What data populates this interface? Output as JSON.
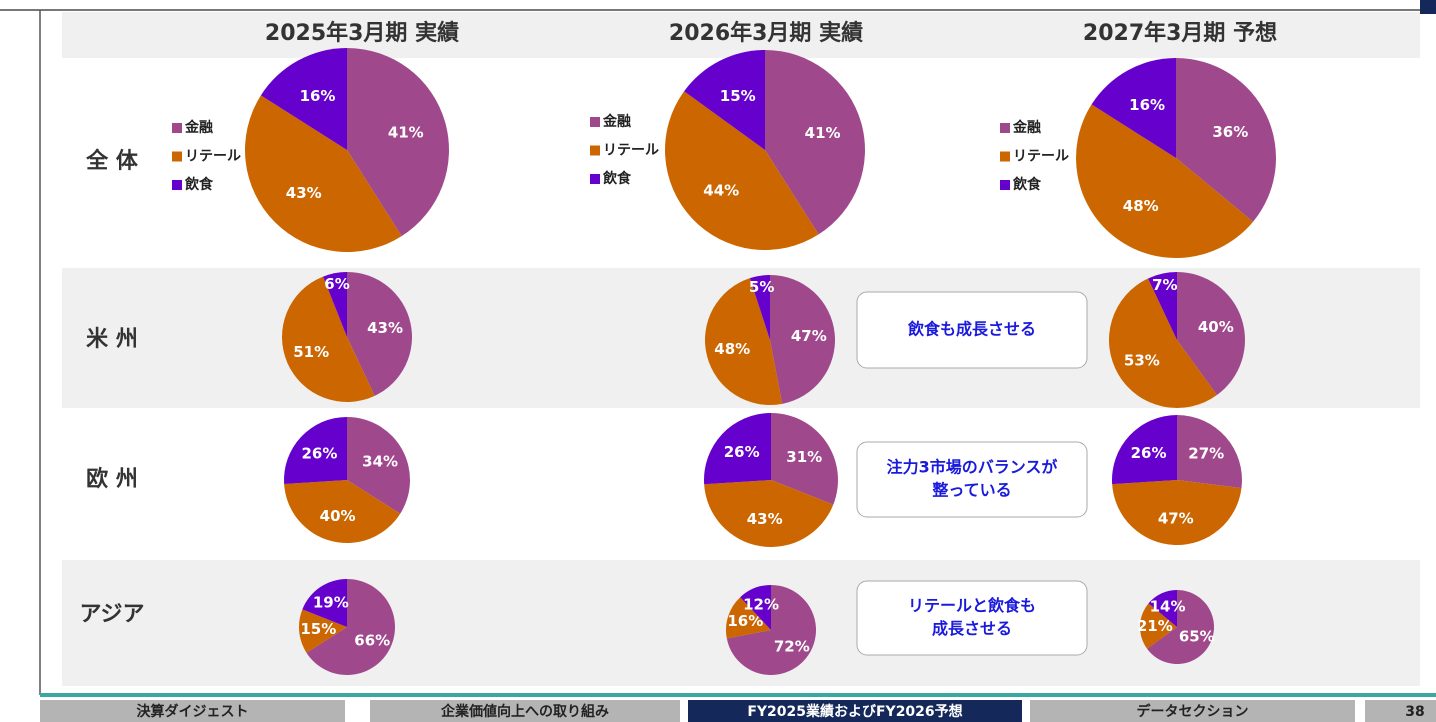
{
  "headers": [
    "2025年3月期 実績",
    "2026年3月期 実績",
    "2027年3月期 予想"
  ],
  "rows": [
    "全 体",
    "米 州",
    "欧 州",
    "アジア"
  ],
  "callouts": [
    [
      "飲食も成長させる"
    ],
    [
      "注力3市場のバランスが",
      "整っている"
    ],
    [
      "リテールと飲食も",
      "成長させる"
    ]
  ],
  "nav": {
    "tabs": [
      "決算ダイジェスト",
      "企業価値向上への取り組み",
      "FY2025業績およびFY2026予想",
      "データセクション"
    ],
    "active": 2,
    "page": "38"
  },
  "chart_data": [
    {
      "type": "pie",
      "categories": [
        "金融",
        "リテール",
        "飲食"
      ],
      "values": [
        41,
        43,
        16
      ],
      "value_labels": [
        "41%",
        "43%",
        "16%"
      ],
      "colors": [
        "#a0488c",
        "#cc6600",
        "#6600cc"
      ]
    },
    {
      "type": "pie",
      "categories": [
        "金融",
        "リテール",
        "飲食"
      ],
      "values": [
        41,
        44,
        15
      ],
      "value_labels": [
        "41%",
        "44%",
        "15%"
      ],
      "colors": [
        "#a0488c",
        "#cc6600",
        "#6600cc"
      ]
    },
    {
      "type": "pie",
      "categories": [
        "金融",
        "リテール",
        "飲食"
      ],
      "values": [
        36,
        48,
        16
      ],
      "value_labels": [
        "36%",
        "48%",
        "16%"
      ],
      "colors": [
        "#a0488c",
        "#cc6600",
        "#6600cc"
      ]
    },
    {
      "type": "pie",
      "values": [
        43,
        51,
        6
      ],
      "value_labels": [
        "43%",
        "51%",
        "6%"
      ],
      "colors": [
        "#a0488c",
        "#cc6600",
        "#6600cc"
      ]
    },
    {
      "type": "pie",
      "values": [
        47,
        48,
        5
      ],
      "value_labels": [
        "47%",
        "48%",
        "5%"
      ],
      "colors": [
        "#a0488c",
        "#cc6600",
        "#6600cc"
      ]
    },
    {
      "type": "pie",
      "values": [
        40,
        53,
        7
      ],
      "value_labels": [
        "40%",
        "53%",
        "7%"
      ],
      "colors": [
        "#a0488c",
        "#cc6600",
        "#6600cc"
      ]
    },
    {
      "type": "pie",
      "values": [
        34,
        40,
        26
      ],
      "value_labels": [
        "34%",
        "40%",
        "26%"
      ],
      "colors": [
        "#a0488c",
        "#cc6600",
        "#6600cc"
      ]
    },
    {
      "type": "pie",
      "values": [
        31,
        43,
        26
      ],
      "value_labels": [
        "31%",
        "43%",
        "26%"
      ],
      "colors": [
        "#a0488c",
        "#cc6600",
        "#6600cc"
      ]
    },
    {
      "type": "pie",
      "values": [
        27,
        47,
        26
      ],
      "value_labels": [
        "27%",
        "47%",
        "26%"
      ],
      "colors": [
        "#a0488c",
        "#cc6600",
        "#6600cc"
      ]
    },
    {
      "type": "pie",
      "values": [
        66,
        15,
        19
      ],
      "value_labels": [
        "66%",
        "15%",
        "19%"
      ],
      "colors": [
        "#a0488c",
        "#cc6600",
        "#6600cc"
      ]
    },
    {
      "type": "pie",
      "values": [
        72,
        16,
        12
      ],
      "value_labels": [
        "72%",
        "16%",
        "12%"
      ],
      "colors": [
        "#a0488c",
        "#cc6600",
        "#6600cc"
      ]
    },
    {
      "type": "pie",
      "values": [
        65,
        21,
        14
      ],
      "value_labels": [
        "65%",
        "21%",
        "14%"
      ],
      "colors": [
        "#a0488c",
        "#cc6600",
        "#6600cc"
      ]
    }
  ]
}
